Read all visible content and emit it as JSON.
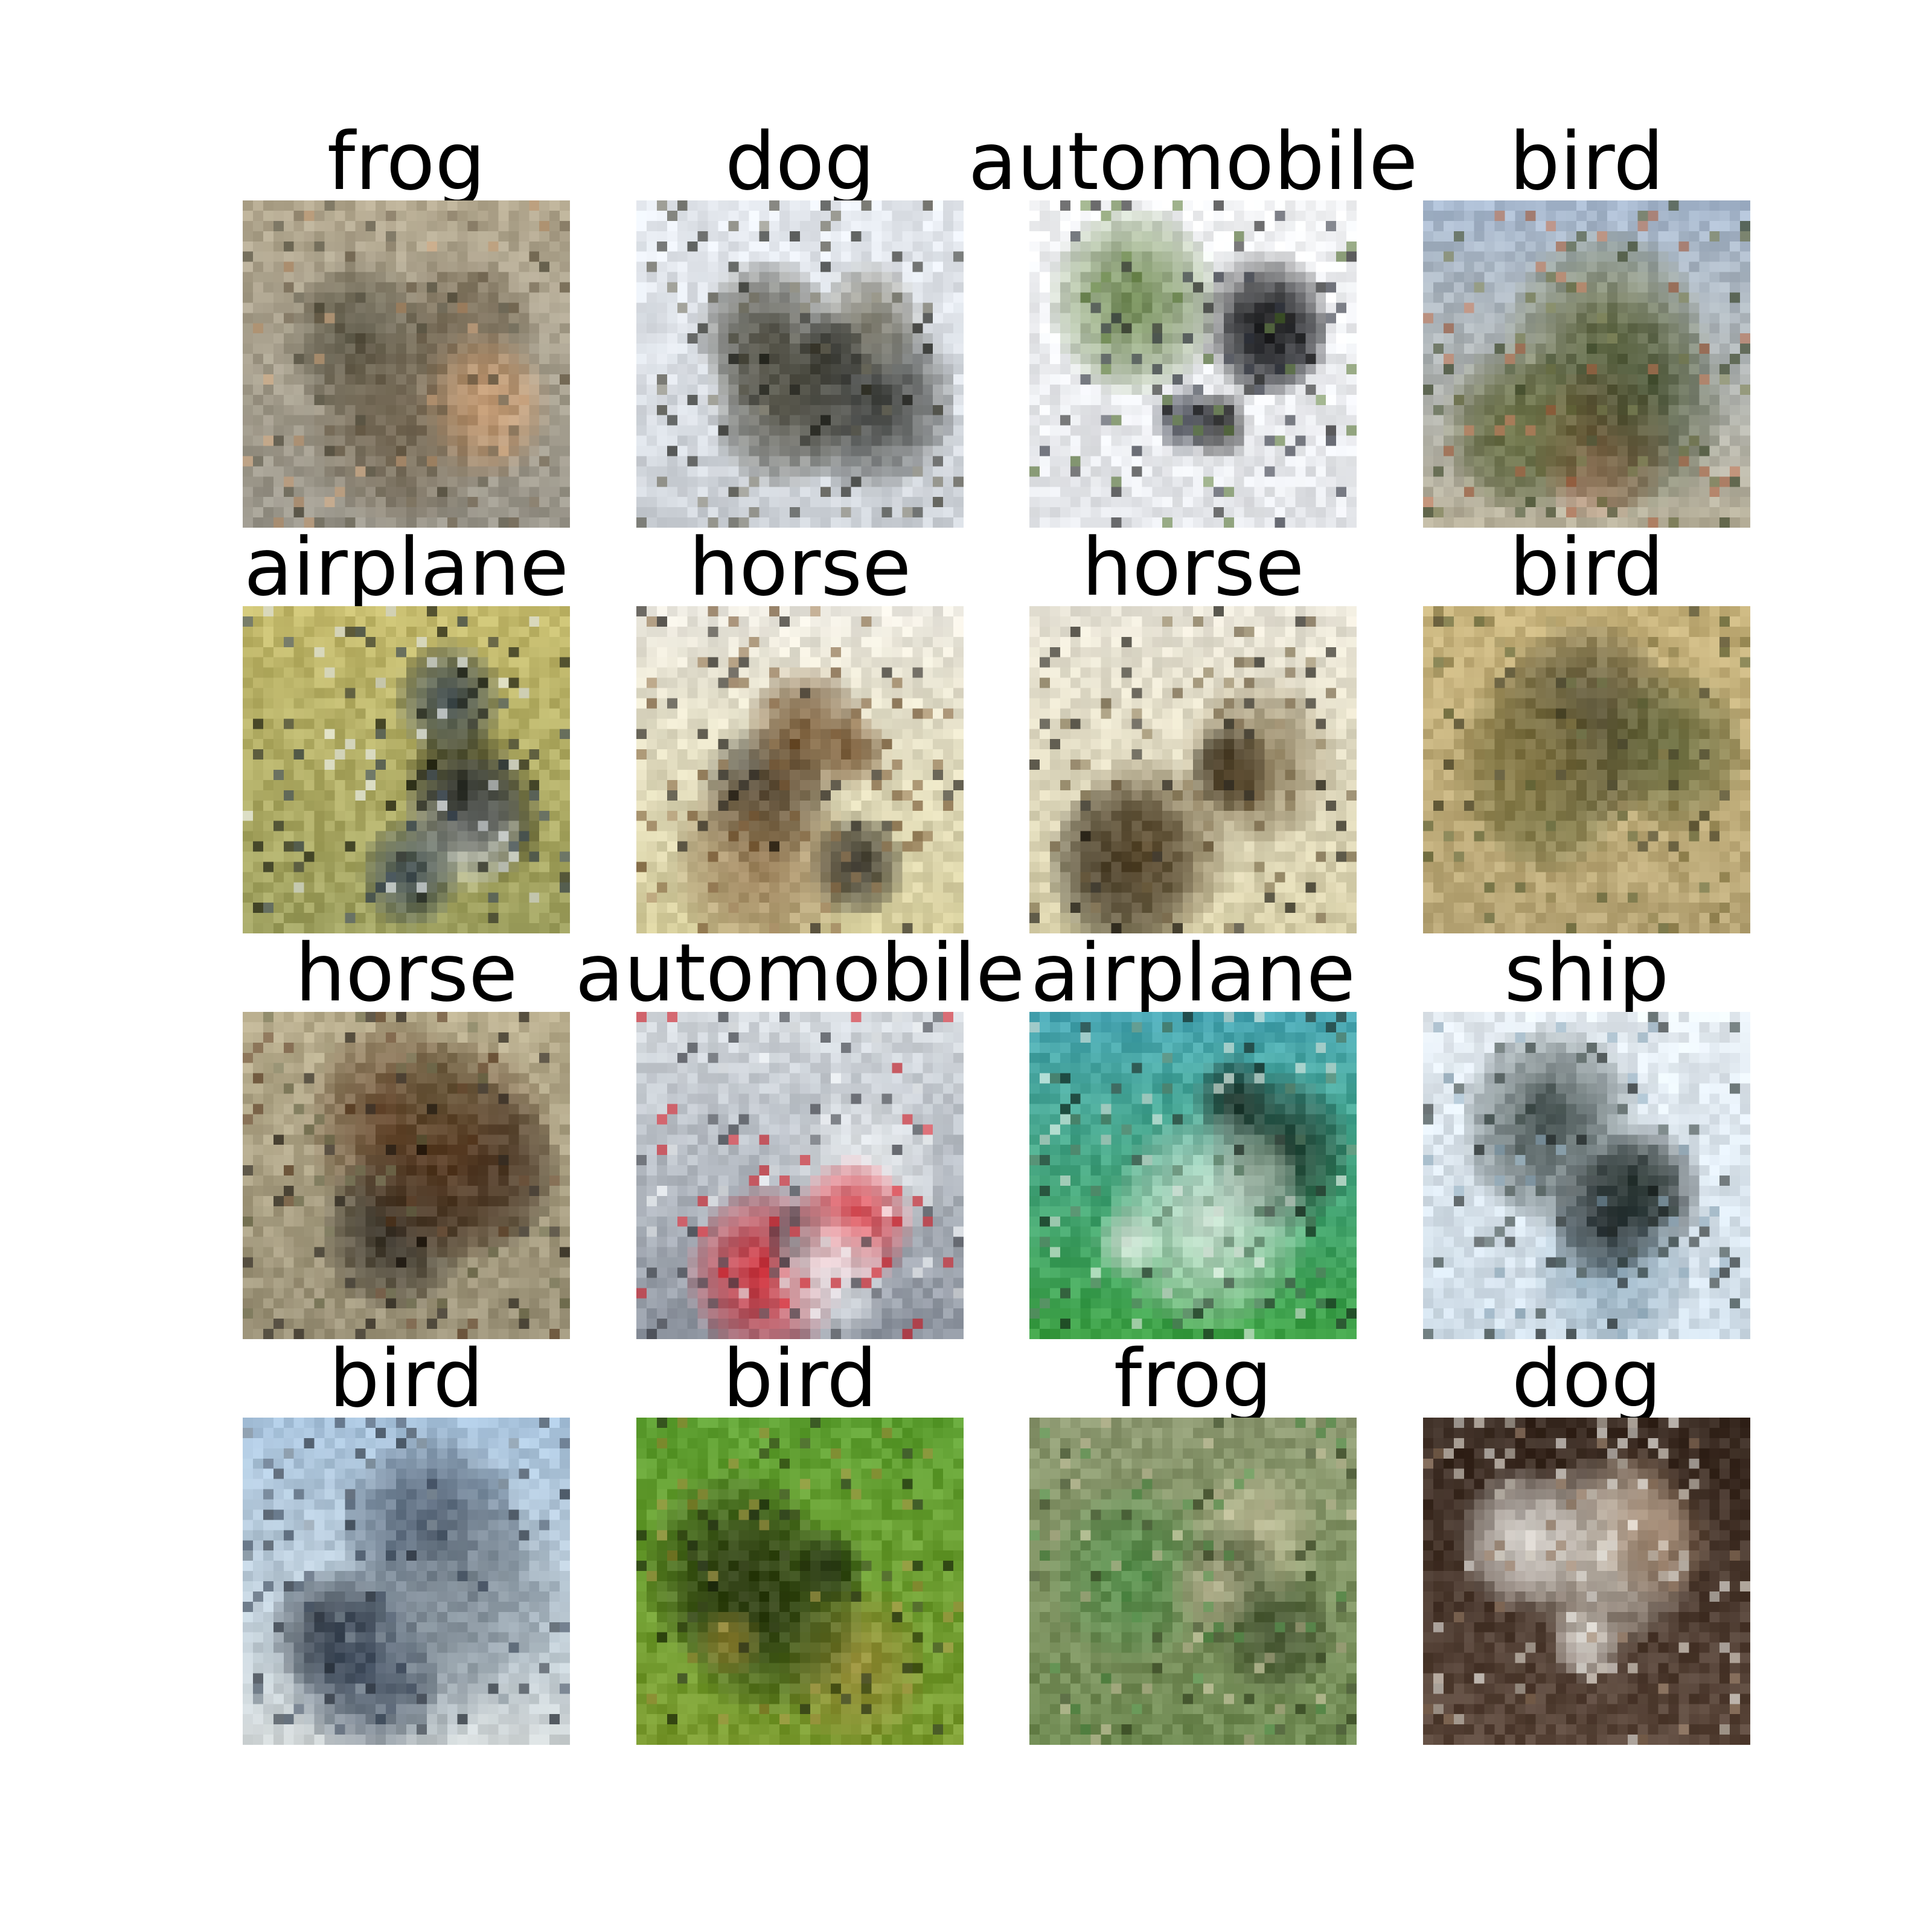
{
  "figure": {
    "rows": 4,
    "cols": 4
  },
  "samples": [
    {
      "label": "frog",
      "subject": "blurred beige-gray natural scene with a small orange-brown animal shape",
      "palette": {
        "bg": [
          "#b3a88f",
          "#9a968b"
        ],
        "fg": [
          "#6a5d48",
          "#c49b74",
          "#4c4838"
        ]
      }
    },
    {
      "label": "dog",
      "subject": "dark four-legged animal silhouette on a pale white-blue background",
      "palette": {
        "bg": [
          "#e7ebf1",
          "#cdd2d8"
        ],
        "fg": [
          "#1b1c16",
          "#3c3a2c",
          "#7a7766"
        ]
      }
    },
    {
      "label": "automobile",
      "subject": "dark object with colorful specks against a white sky",
      "palette": {
        "bg": [
          "#f5f6f8",
          "#e4e6ea"
        ],
        "fg": [
          "#151515",
          "#2a2e3a",
          "#5c7a3a"
        ]
      }
    },
    {
      "label": "bird",
      "subject": "green-brown branching shape on a light blue background",
      "palette": {
        "bg": [
          "#a8b9cf",
          "#b8b19b"
        ],
        "fg": [
          "#3f4b2c",
          "#6d7244",
          "#b46a4a"
        ]
      }
    },
    {
      "label": "airplane",
      "subject": "dark diagonal shape with white streaks on a yellow-green background",
      "palette": {
        "bg": [
          "#c4ba6c",
          "#9ea05f"
        ],
        "fg": [
          "#141712",
          "#2c3b4e",
          "#e9eef2"
        ]
      }
    },
    {
      "label": "horse",
      "subject": "dark brown body with spread wings over a pale tan field",
      "palette": {
        "bg": [
          "#ece9e0",
          "#d6ce9c"
        ],
        "fg": [
          "#120f0b",
          "#6b4a26",
          "#947650"
        ]
      }
    },
    {
      "label": "horse",
      "subject": "dark brown animal body on a pale sand background",
      "palette": {
        "bg": [
          "#e9e5d8",
          "#d7cfa8"
        ],
        "fg": [
          "#15130e",
          "#5c4a2c",
          "#847452"
        ]
      }
    },
    {
      "label": "bird",
      "subject": "olive-green branching shape on a warm tan background",
      "palette": {
        "bg": [
          "#c7b37c",
          "#b8a676"
        ],
        "fg": [
          "#5c6236",
          "#8a7d4a",
          "#3d3a24"
        ]
      }
    },
    {
      "label": "horse",
      "subject": "dark brown blurred animal shape on a muted beige background",
      "palette": {
        "bg": [
          "#b9ae8e",
          "#9c9379"
        ],
        "fg": [
          "#1c1712",
          "#5d3e25",
          "#6a6a4a"
        ]
      }
    },
    {
      "label": "automobile",
      "subject": "red car on a gray road with a pale background",
      "palette": {
        "bg": [
          "#d6dbe0",
          "#8f96a1"
        ],
        "fg": [
          "#d8202a",
          "#f0f3f5",
          "#3a3d44"
        ]
      }
    },
    {
      "label": "airplane",
      "subject": "dark aircraft shape over a green field and teal sky",
      "palette": {
        "bg": [
          "#4aa7b4",
          "#3fa247"
        ],
        "fg": [
          "#1f2a22",
          "#dfe8e0",
          "#5c7f66"
        ]
      }
    },
    {
      "label": "ship",
      "subject": "dark hull-like shape on pale blue-white water",
      "palette": {
        "bg": [
          "#e6edf3",
          "#cfdde8"
        ],
        "fg": [
          "#121817",
          "#2f3c39",
          "#8aa6b8"
        ]
      }
    },
    {
      "label": "bird",
      "subject": "gray-blue blurred animal with a dark eye on a sky-blue background",
      "palette": {
        "bg": [
          "#a9c4dd",
          "#cfd5d6"
        ],
        "fg": [
          "#3d4a5c",
          "#7f8b95",
          "#1f2630"
        ]
      }
    },
    {
      "label": "bird",
      "subject": "green foliage with dark spots",
      "palette": {
        "bg": [
          "#5fa133",
          "#7a9a2f"
        ],
        "fg": [
          "#2d3a14",
          "#9c8b3a",
          "#182010"
        ]
      }
    },
    {
      "label": "frog",
      "subject": "mottled green-beige ground texture",
      "palette": {
        "bg": [
          "#8e9a72",
          "#6f8a52"
        ],
        "fg": [
          "#3c4a2a",
          "#c4bf9c",
          "#4f8d48"
        ]
      }
    },
    {
      "label": "dog",
      "subject": "white fluffy animal face on a dark brown background",
      "palette": {
        "bg": [
          "#3a2b22",
          "#5a463a"
        ],
        "fg": [
          "#f1efea",
          "#9b8069",
          "#d9d3c8"
        ]
      }
    }
  ]
}
